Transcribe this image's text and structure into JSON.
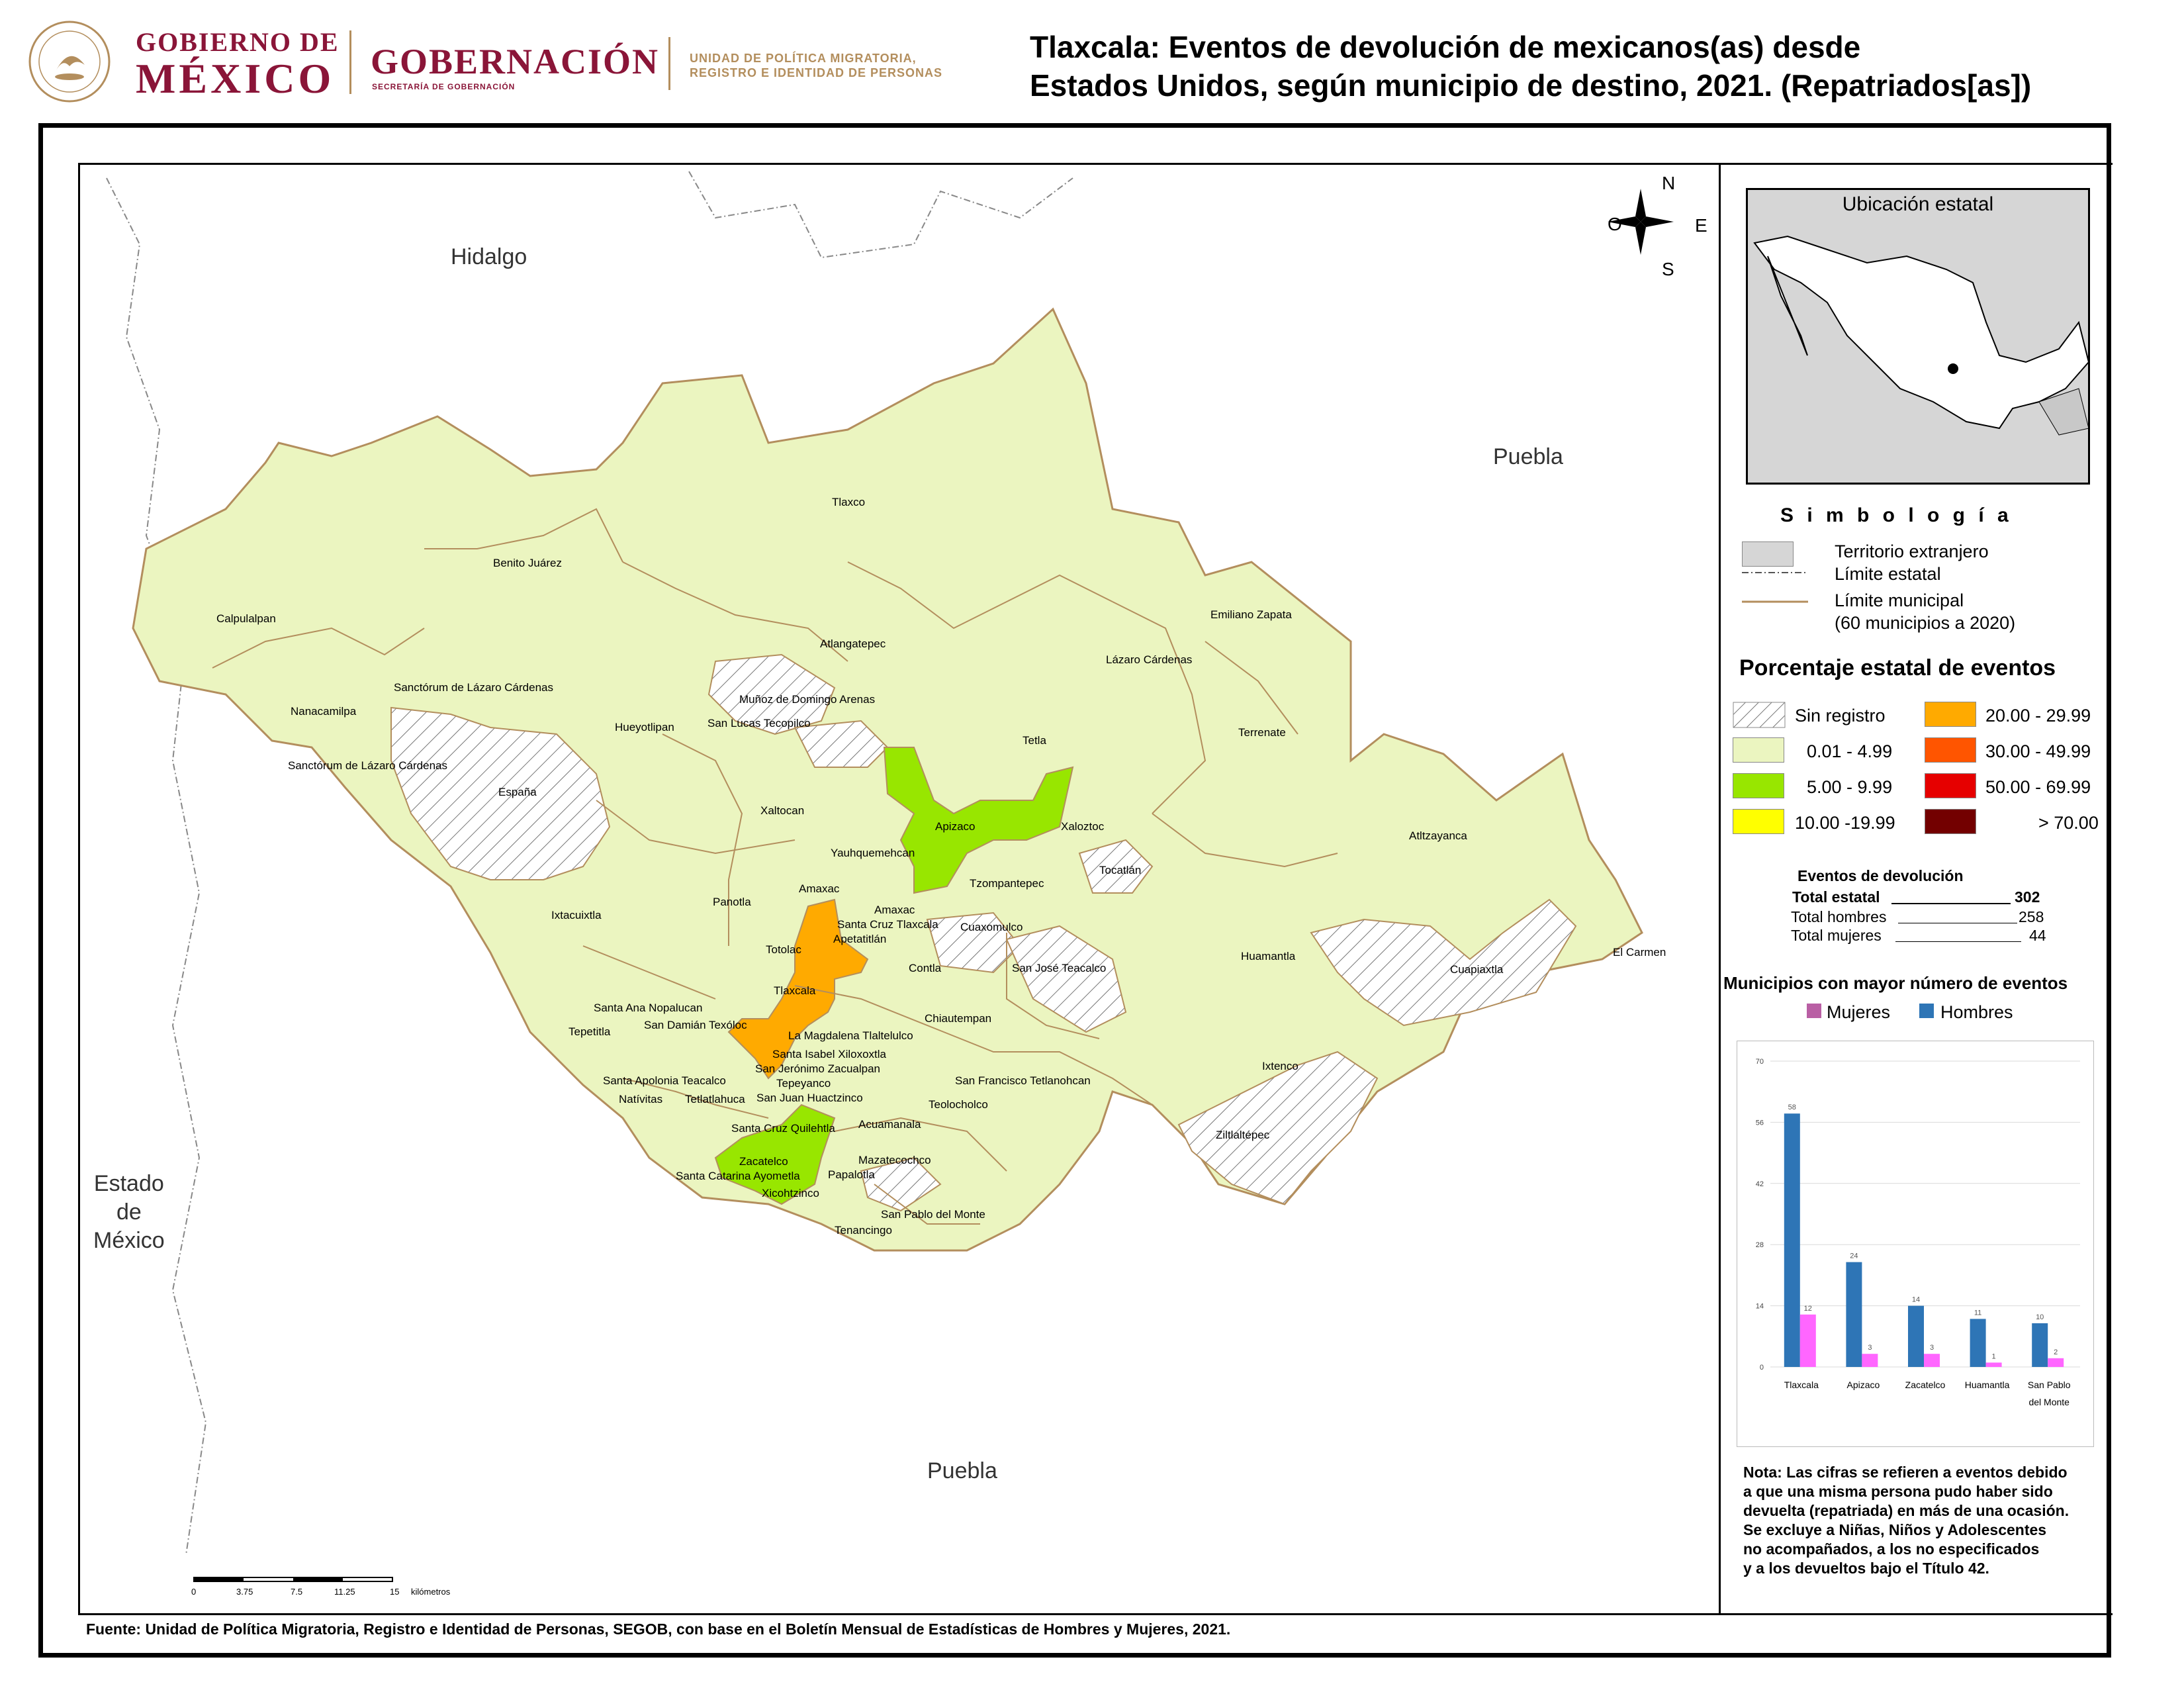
{
  "header": {
    "gob_line1": "GOBIERNO DE",
    "gob_line2": "MÉXICO",
    "gov_line1": "GOBERNACIÓN",
    "gov_line2": "SECRETARÍA DE GOBERNACIÓN",
    "unit_line1": "UNIDAD DE POLÍTICA MIGRATORIA,",
    "unit_line2": "REGISTRO E IDENTIDAD DE PERSONAS",
    "title_line1": "Tlaxcala: Eventos de devolución de mexicanos(as) desde",
    "title_line2": "Estados Unidos, según municipio de destino, 2021. (Repatriados[as])"
  },
  "map": {
    "neighbors": {
      "hidalgo": "Hidalgo",
      "puebla_north": "Puebla",
      "puebla_south": "Puebla",
      "edomex": "Estado\nde\nMéxico"
    },
    "compass": {
      "n": "N",
      "s": "S",
      "e": "E",
      "w": "O"
    },
    "scale": {
      "ticks": [
        "0",
        "3.75",
        "7.5",
        "11.25",
        "15"
      ],
      "unit": "kilómetros"
    },
    "municipalities": [
      "Tlaxco",
      "Benito Juárez",
      "Calpulalpan",
      "Atlangatepec",
      "Emiliano Zapata",
      "Lázaro Cárdenas",
      "Sanctórum de Lázaro Cárdenas",
      "Muñoz de Domingo Arenas",
      "Nanacamilpa",
      "Hueyotlipan",
      "San Lucas Tecopilco",
      "Tetla",
      "Terrenate",
      "Sanctórum de Lázaro Cárdenas",
      "España",
      "Xaltocan",
      "Apizaco",
      "Xaloztoc",
      "Atltzayanca",
      "Yauhquemehcan",
      "Tocatlán",
      "Tzompantepec",
      "Ixtacuixtla",
      "Panotla",
      "Amaxac",
      "Amaxac",
      "Santa Cruz Tlaxcala",
      "Cuaxomulco",
      "Apetatitlán",
      "Totolac",
      "Contla",
      "San José Teacalco",
      "Huamantla",
      "Cuapiaxtla",
      "El Carmen",
      "Tlaxcala",
      "Santa Ana Nopalucan",
      "Chiautempan",
      "Tepetitla",
      "San Damián Texóloc",
      "La Magdalena Tlaltelulco",
      "Santa Isabel Xiloxoxtla",
      "San Jerónimo Zacualpan",
      "Ixtenco",
      "Santa Apolonia Teacalco",
      "Tepeyanco",
      "San Francisco Tetlanohcan",
      "Natívitas",
      "Tetlatlahuca",
      "San Juan Huactzinco",
      "Teolocholco",
      "Ziltlaltépec",
      "Santa Cruz Quilehtla",
      "Acuamanala",
      "Zacatelco",
      "Mazatecochco",
      "Santa Catarina Ayometla",
      "Papalotla",
      "Xicohtzinco",
      "San Pablo del Monte",
      "Tenancingo"
    ]
  },
  "legend": {
    "inset_title": "Ubicación estatal",
    "simbologia_title": "S i m b o l o g í a",
    "items": {
      "foreign": "Territorio extranjero",
      "state_limit": "Límite estatal",
      "mun_limit_1": "Límite municipal",
      "mun_limit_2": "(60 municipios a 2020)"
    },
    "pct_title": "Porcentaje estatal de eventos",
    "classes": [
      {
        "label": "Sin registro",
        "color": "hatch"
      },
      {
        "label": "0.01  - 4.99",
        "color": "#ebf5c0"
      },
      {
        "label": "5.00  - 9.99",
        "color": "#98e600"
      },
      {
        "label": "10.00 -19.99",
        "color": "#ffff00"
      },
      {
        "label": "20.00 - 29.99",
        "color": "#ffaa00"
      },
      {
        "label": "30.00 - 49.99",
        "color": "#ff5500"
      },
      {
        "label": "50.00 - 69.99",
        "color": "#e60000"
      },
      {
        "label": "> 70.00",
        "color": "#730000"
      }
    ],
    "events_title": "Eventos de devolución",
    "totals": [
      {
        "label": "Total estatal",
        "value": "302"
      },
      {
        "label": "Total hombres",
        "value": "258"
      },
      {
        "label": "Total mujeres",
        "value": "44"
      }
    ],
    "top_title": "Municipios con mayor número de eventos",
    "series_women": "Mujeres",
    "series_men": "Hombres",
    "note_lines": [
      "Nota: Las cifras se refieren a eventos debido",
      "a que una misma persona pudo haber sido",
      "devuelta (repatriada) en más de una ocasión.",
      "Se excluye a Niñas, Niños y Adolescentes",
      "no acompañados, a los no especificados",
      "y a los devueltos bajo el Título 42."
    ]
  },
  "chart_data": {
    "type": "bar",
    "categories": [
      "Tlaxcala",
      "Apizaco",
      "Zacatelco",
      "Huamantla",
      "San Pablo del Monte"
    ],
    "series": [
      {
        "name": "Hombres",
        "values": [
          58,
          24,
          14,
          11,
          10
        ],
        "color": "#2e75b6"
      },
      {
        "name": "Mujeres",
        "values": [
          12,
          3,
          3,
          1,
          2
        ],
        "color": "#ff66ff"
      }
    ],
    "yticks": [
      "0",
      "14",
      "28",
      "42",
      "56",
      "70"
    ],
    "ylim": [
      0,
      70
    ],
    "grid": true
  },
  "source": "Fuente: Unidad de Política Migratoria, Registro e Identidad de Personas, SEGOB, con base en el Boletín Mensual de Estadísticas de Hombres y Mujeres, 2021."
}
